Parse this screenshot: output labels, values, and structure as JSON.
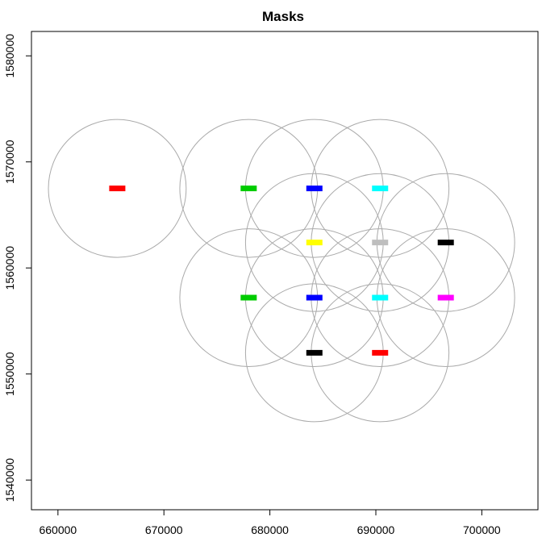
{
  "chart_data": {
    "type": "scatter",
    "title": "Masks",
    "xlabel": "",
    "ylabel": "",
    "xlim": [
      657500,
      705300
    ],
    "ylim": [
      1537200,
      1582300
    ],
    "grid": false,
    "x_ticks": [
      660000,
      670000,
      680000,
      690000,
      700000
    ],
    "x_tick_labels": [
      "660000",
      "670000",
      "680000",
      "690000",
      "700000"
    ],
    "y_ticks": [
      1540000,
      1550000,
      1560000,
      1570000,
      1580000
    ],
    "y_tick_labels": [
      "1540000",
      "1550000",
      "1560000",
      "1570000",
      "1580000"
    ],
    "circle_color": "#aaaaaa",
    "circle_radius": 6500,
    "circles": [
      {
        "x": 665600,
        "y": 1567500
      },
      {
        "x": 678000,
        "y": 1567500
      },
      {
        "x": 684200,
        "y": 1567500
      },
      {
        "x": 690400,
        "y": 1567500
      },
      {
        "x": 684200,
        "y": 1562400
      },
      {
        "x": 690400,
        "y": 1562400
      },
      {
        "x": 696600,
        "y": 1562400
      },
      {
        "x": 678000,
        "y": 1557200
      },
      {
        "x": 684200,
        "y": 1557200
      },
      {
        "x": 690400,
        "y": 1557200
      },
      {
        "x": 696600,
        "y": 1557200
      },
      {
        "x": 684200,
        "y": 1552000
      },
      {
        "x": 690400,
        "y": 1552000
      }
    ],
    "masks": [
      {
        "x": 665600,
        "y": 1567500,
        "color": "#ff0000"
      },
      {
        "x": 678000,
        "y": 1567500,
        "color": "#00cc00"
      },
      {
        "x": 684200,
        "y": 1567500,
        "color": "#0000ff"
      },
      {
        "x": 690400,
        "y": 1567500,
        "color": "#00ffff"
      },
      {
        "x": 684200,
        "y": 1562400,
        "color": "#ffff00"
      },
      {
        "x": 690400,
        "y": 1562400,
        "color": "#bebebe"
      },
      {
        "x": 696600,
        "y": 1562400,
        "color": "#000000"
      },
      {
        "x": 678000,
        "y": 1557200,
        "color": "#00cc00"
      },
      {
        "x": 684200,
        "y": 1557200,
        "color": "#0000ff"
      },
      {
        "x": 690400,
        "y": 1557200,
        "color": "#00ffff"
      },
      {
        "x": 696600,
        "y": 1557200,
        "color": "#ff00ff"
      },
      {
        "x": 684200,
        "y": 1552000,
        "color": "#000000"
      },
      {
        "x": 690400,
        "y": 1552000,
        "color": "#ff0000"
      }
    ]
  }
}
